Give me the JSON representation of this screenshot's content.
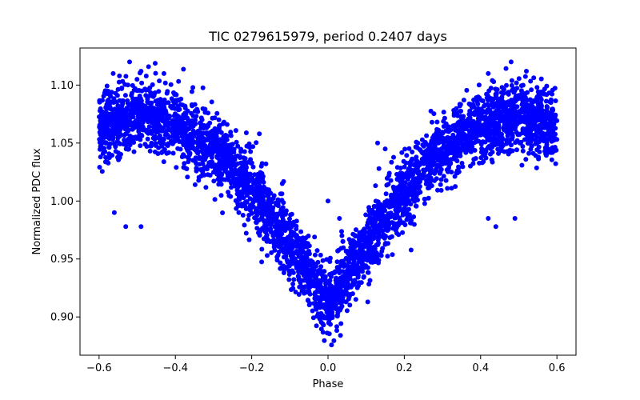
{
  "chart_data": {
    "type": "scatter",
    "title": "TIC 0279615979, period 0.2407 days",
    "xlabel": "Phase",
    "ylabel": "Normalized PDC flux",
    "xlim": [
      -0.65,
      0.65
    ],
    "ylim": [
      0.867,
      1.132
    ],
    "xticks": [
      -0.6,
      -0.4,
      -0.2,
      0.0,
      0.2,
      0.4,
      0.6
    ],
    "xtick_labels": [
      "−0.6",
      "−0.4",
      "−0.2",
      "0.0",
      "0.2",
      "0.4",
      "0.6"
    ],
    "yticks": [
      0.9,
      0.95,
      1.0,
      1.05,
      1.1
    ],
    "ytick_labels": [
      "0.90",
      "0.95",
      "1.00",
      "1.05",
      "1.10"
    ],
    "grid": false,
    "series": [
      {
        "name": "PDC flux",
        "color": "#0000ff",
        "marker": "circle",
        "x_range": [
          -0.6,
          0.6
        ],
        "trend_phase": [
          -0.6,
          -0.5,
          -0.4,
          -0.3,
          -0.2,
          -0.1,
          0.0,
          0.1,
          0.2,
          0.3,
          0.4,
          0.5,
          0.6
        ],
        "trend_flux": [
          1.062,
          1.075,
          1.066,
          1.045,
          1.01,
          0.96,
          0.912,
          0.96,
          1.01,
          1.045,
          1.066,
          1.075,
          1.062
        ],
        "scatter_width": 0.032,
        "outliers": [
          {
            "x": -0.52,
            "y": 1.12
          },
          {
            "x": -0.49,
            "y": 1.112
          },
          {
            "x": -0.43,
            "y": 1.11
          },
          {
            "x": -0.56,
            "y": 0.99
          },
          {
            "x": -0.53,
            "y": 0.978
          },
          {
            "x": -0.49,
            "y": 0.978
          },
          {
            "x": -0.18,
            "y": 1.058
          },
          {
            "x": -0.12,
            "y": 1.015
          },
          {
            "x": 0.0,
            "y": 1.0
          },
          {
            "x": 0.03,
            "y": 0.985
          },
          {
            "x": 0.13,
            "y": 1.05
          },
          {
            "x": 0.15,
            "y": 1.045
          },
          {
            "x": 0.48,
            "y": 1.12
          },
          {
            "x": 0.52,
            "y": 1.112
          },
          {
            "x": 0.42,
            "y": 1.11
          },
          {
            "x": 0.42,
            "y": 0.985
          },
          {
            "x": 0.49,
            "y": 0.985
          },
          {
            "x": 0.44,
            "y": 0.978
          }
        ]
      }
    ]
  }
}
